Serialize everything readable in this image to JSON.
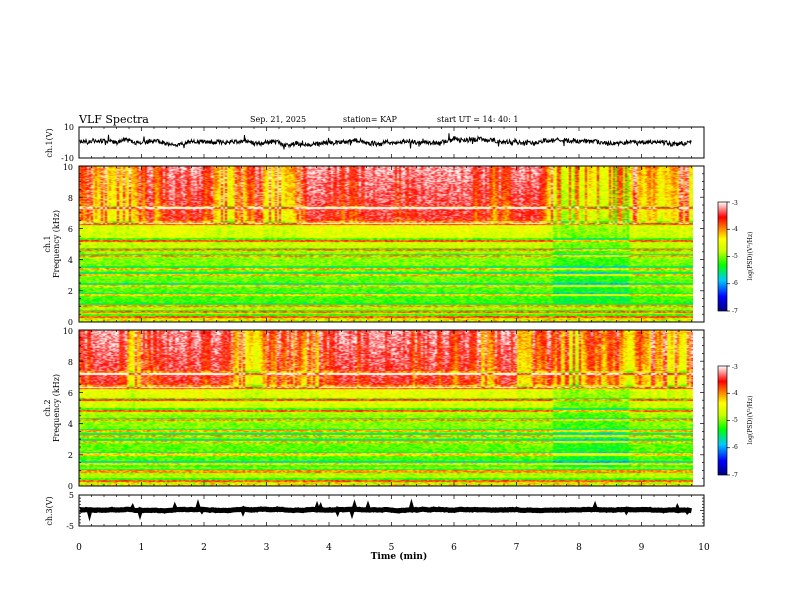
{
  "header": {
    "title": "VLF Spectra",
    "date": "Sep. 21, 2025",
    "station": "station= KAP",
    "start": "start  UT =   14: 40: 1"
  },
  "colors": {
    "background": "#ffffff",
    "axis": "#000000",
    "colormap": [
      "#000080",
      "#0000ff",
      "#00c8ff",
      "#00ff00",
      "#c8ff00",
      "#ffff00",
      "#ff8000",
      "#ff0000",
      "#ffffff"
    ]
  },
  "chart_data": [
    {
      "id": "ch1_waveform",
      "type": "line",
      "ylabel": "ch.1(V)",
      "ylim": [
        -10,
        10
      ],
      "yticks": [
        "10",
        "-10"
      ],
      "xlim": [
        0,
        10
      ],
      "baseline_v": 0.5,
      "noise_amplitude_v": 3
    },
    {
      "id": "ch1_spectrogram",
      "type": "heatmap",
      "ylabel_top": "ch.1",
      "ylabel": "Frequency (kHz)",
      "ylim": [
        0,
        10
      ],
      "yticks": [
        "0",
        "2",
        "4",
        "6",
        "8",
        "10"
      ],
      "xlim": [
        0,
        10
      ],
      "data_extent_min": 9.8,
      "colorbar": {
        "label": "log(PSD)(V²/Hz)",
        "ticks": [
          "-3",
          "-4",
          "-5",
          "-6",
          "-7"
        ],
        "range": [
          -7,
          -3
        ]
      },
      "features": {
        "high_freq_bursts_khz": [
          6.5,
          10
        ],
        "band_lines_khz": [
          0.3,
          0.6,
          1.0,
          1.7,
          2.3,
          3.0,
          3.4,
          4.2,
          4.6,
          5.2,
          6.3,
          7.3
        ],
        "quiet_segment_min": [
          7.55,
          8.75
        ]
      }
    },
    {
      "id": "ch2_spectrogram",
      "type": "heatmap",
      "ylabel_top": "ch.2",
      "ylabel": "Frequency (kHz)",
      "ylim": [
        0,
        10
      ],
      "yticks": [
        "0",
        "2",
        "4",
        "6",
        "8",
        "10"
      ],
      "xlim": [
        0,
        10
      ],
      "data_extent_min": 9.8,
      "colorbar": {
        "label": "log(PSD)(V²/Hz)",
        "ticks": [
          "-3",
          "-4",
          "-5",
          "-6",
          "-7"
        ],
        "range": [
          -7,
          -3
        ]
      },
      "features": {
        "high_freq_bursts_khz": [
          6.5,
          10
        ],
        "band_lines_khz": [
          0.3,
          0.9,
          1.4,
          2.0,
          2.8,
          3.2,
          3.5,
          4.2,
          4.8,
          5.5,
          6.3,
          7.2
        ],
        "quiet_segment_min": [
          7.55,
          8.75
        ]
      }
    },
    {
      "id": "ch3_waveform",
      "type": "line",
      "ylabel": "ch.3(V)",
      "ylim": [
        -5,
        5
      ],
      "yticks": [
        "5",
        "-5"
      ],
      "xlim": [
        0,
        10
      ],
      "baseline_v": 0.2,
      "noise_amplitude_v": 0.5,
      "xlabel": "Time (min)",
      "xticks": [
        "0",
        "1",
        "2",
        "3",
        "4",
        "5",
        "6",
        "7",
        "8",
        "9",
        "10"
      ]
    }
  ]
}
